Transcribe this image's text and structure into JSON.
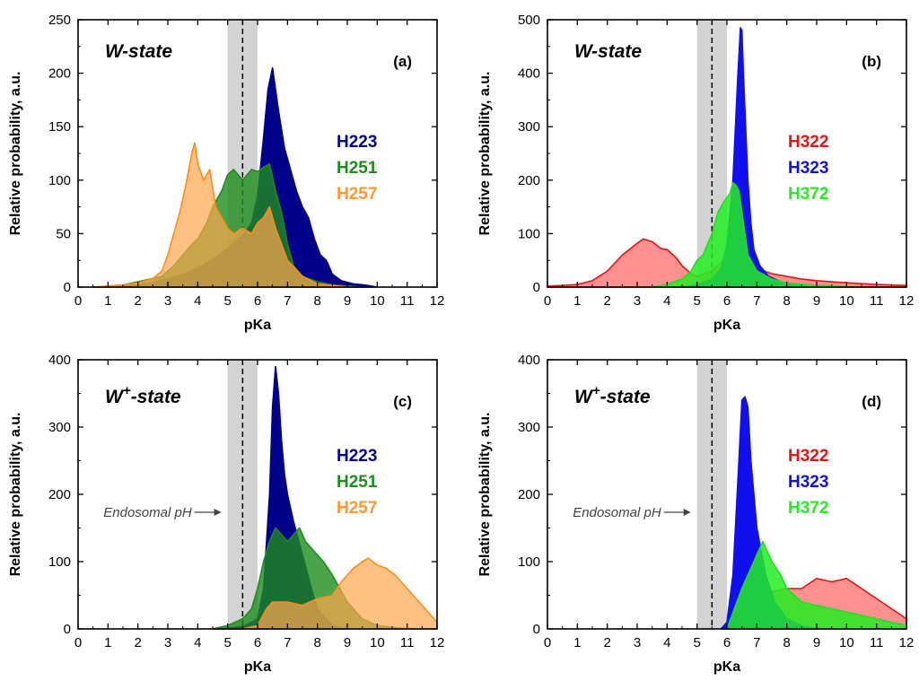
{
  "figure": {
    "shared": {
      "ph_band": [
        5,
        6
      ],
      "ph_line": 5.5,
      "annotation": "Endosomal pH",
      "colors": {
        "band": "#d3d3d3",
        "H223": "#00008b",
        "H251": "#1e8c1e",
        "H257": "#ff9933",
        "H322": "#ee1111",
        "H323": "#1010ee",
        "H372": "#22ee22"
      }
    }
  },
  "chart_data": [
    {
      "id": "a",
      "type": "area",
      "tag": "(a)",
      "state": {
        "base": "W",
        "sup": "",
        "suffix": "-state"
      },
      "xlabel": "pKa",
      "ylabel": "Relative probability, a.u.",
      "xlim": [
        0,
        12
      ],
      "ylim": [
        0,
        250
      ],
      "xticks": [
        0,
        1,
        2,
        3,
        4,
        5,
        6,
        7,
        8,
        9,
        10,
        11,
        12
      ],
      "yticks": [
        0,
        50,
        100,
        150,
        200,
        250
      ],
      "show_annotation": false,
      "legend": [
        "H223",
        "H251",
        "H257"
      ],
      "series": [
        {
          "name": "H223",
          "color": "#00008b",
          "opacity": 1,
          "stroke": "#00008b",
          "x": [
            0.5,
            1,
            1.5,
            2,
            2.5,
            3,
            3.5,
            4,
            4.5,
            5,
            5.5,
            5.8,
            6,
            6.2,
            6.35,
            6.5,
            6.7,
            6.9,
            7.1,
            7.3,
            7.5,
            7.7,
            7.9,
            8.1,
            8.3,
            8.5,
            8.8,
            9.2,
            9.6,
            10
          ],
          "y": [
            0,
            0,
            1,
            2,
            4,
            8,
            12,
            18,
            26,
            36,
            48,
            60,
            85,
            140,
            185,
            205,
            165,
            130,
            110,
            90,
            75,
            65,
            45,
            30,
            25,
            12,
            6,
            3,
            2,
            0
          ]
        },
        {
          "name": "H251",
          "color": "#1e8c1e",
          "opacity": 0.8,
          "stroke": "#1e8c1e",
          "x": [
            0.5,
            1,
            1.5,
            2,
            2.5,
            2.8,
            3,
            3.2,
            3.5,
            3.8,
            4,
            4.3,
            4.5,
            4.8,
            5,
            5.2,
            5.5,
            5.8,
            6,
            6.2,
            6.4,
            6.6,
            6.8,
            7,
            7.2,
            7.5,
            8,
            8.5,
            9,
            9.5
          ],
          "y": [
            0,
            1,
            2,
            5,
            8,
            10,
            15,
            20,
            30,
            40,
            45,
            60,
            75,
            90,
            105,
            110,
            100,
            110,
            108,
            112,
            115,
            90,
            70,
            40,
            20,
            10,
            5,
            2,
            1,
            0
          ]
        },
        {
          "name": "H257",
          "color": "#ffa64d",
          "opacity": 0.7,
          "stroke": "#ff8c1a",
          "x": [
            0.5,
            1,
            1.5,
            2,
            2.5,
            2.8,
            3,
            3.2,
            3.4,
            3.6,
            3.8,
            3.9,
            4,
            4.2,
            4.4,
            4.6,
            4.8,
            5,
            5.2,
            5.5,
            5.8,
            6,
            6.2,
            6.4,
            6.6,
            6.8,
            7,
            7.5,
            8,
            9
          ],
          "y": [
            0,
            1,
            2,
            4,
            8,
            15,
            30,
            50,
            70,
            95,
            125,
            135,
            115,
            100,
            110,
            75,
            65,
            55,
            50,
            55,
            50,
            60,
            65,
            75,
            55,
            40,
            25,
            10,
            3,
            0
          ]
        }
      ]
    },
    {
      "id": "b",
      "type": "area",
      "tag": "(b)",
      "state": {
        "base": "W",
        "sup": "",
        "suffix": "-state"
      },
      "xlabel": "pKa",
      "ylabel": "Relative probability, a.u.",
      "xlim": [
        0,
        12
      ],
      "ylim": [
        0,
        500
      ],
      "xticks": [
        0,
        1,
        2,
        3,
        4,
        5,
        6,
        7,
        8,
        9,
        10,
        11,
        12
      ],
      "yticks": [
        0,
        100,
        200,
        300,
        400,
        500
      ],
      "show_annotation": false,
      "legend": [
        "H322",
        "H323",
        "H372"
      ],
      "series": [
        {
          "name": "H322",
          "color": "#ff5555",
          "opacity": 0.65,
          "stroke": "#ee1111",
          "x": [
            0,
            0.5,
            1,
            1.5,
            2,
            2.5,
            3,
            3.2,
            3.5,
            3.8,
            4,
            4.3,
            4.5,
            4.8,
            5,
            5.5,
            6,
            6.3,
            6.6,
            7,
            7.5,
            8,
            8.5,
            9,
            9.5,
            10,
            11,
            12
          ],
          "y": [
            2,
            3,
            5,
            12,
            30,
            60,
            82,
            90,
            85,
            72,
            70,
            55,
            40,
            25,
            20,
            30,
            55,
            60,
            55,
            35,
            25,
            20,
            15,
            12,
            10,
            8,
            5,
            3
          ]
        },
        {
          "name": "H323",
          "color": "#1010ee",
          "opacity": 1,
          "stroke": "#1010ee",
          "x": [
            4.5,
            5,
            5.5,
            5.8,
            6,
            6.2,
            6.35,
            6.45,
            6.5,
            6.55,
            6.7,
            6.8,
            6.9,
            7.1,
            7.4,
            7.8,
            8.2,
            8.7
          ],
          "y": [
            0,
            5,
            15,
            35,
            80,
            200,
            380,
            485,
            480,
            400,
            200,
            120,
            70,
            40,
            20,
            10,
            5,
            0
          ]
        },
        {
          "name": "H372",
          "color": "#22ee22",
          "opacity": 0.85,
          "stroke": "#22dd22",
          "x": [
            3.5,
            4,
            4.5,
            4.8,
            5,
            5.2,
            5.5,
            5.7,
            5.9,
            6.1,
            6.2,
            6.3,
            6.4,
            6.5,
            6.7,
            7,
            7.5,
            8,
            9,
            10,
            11
          ],
          "y": [
            0,
            5,
            15,
            30,
            50,
            60,
            100,
            140,
            160,
            175,
            195,
            190,
            180,
            140,
            60,
            30,
            15,
            8,
            3,
            1,
            0
          ]
        }
      ]
    },
    {
      "id": "c",
      "type": "area",
      "tag": "(c)",
      "state": {
        "base": "W",
        "sup": "+",
        "suffix": "-state"
      },
      "xlabel": "pKa",
      "ylabel": "Relative probability, a.u.",
      "xlim": [
        0,
        12
      ],
      "ylim": [
        0,
        400
      ],
      "xticks": [
        0,
        1,
        2,
        3,
        4,
        5,
        6,
        7,
        8,
        9,
        10,
        11,
        12
      ],
      "yticks": [
        0,
        100,
        200,
        300,
        400
      ],
      "show_annotation": true,
      "legend": [
        "H223",
        "H251",
        "H257"
      ],
      "series": [
        {
          "name": "H223",
          "color": "#00008b",
          "opacity": 1,
          "stroke": "#00008b",
          "x": [
            4.8,
            5.2,
            5.6,
            6,
            6.2,
            6.4,
            6.5,
            6.6,
            6.7,
            6.8,
            6.9,
            7,
            7.2,
            7.5,
            7.8,
            8,
            8.5,
            9
          ],
          "y": [
            0,
            2,
            5,
            15,
            60,
            200,
            330,
            390,
            350,
            280,
            230,
            200,
            160,
            110,
            60,
            30,
            5,
            0
          ]
        },
        {
          "name": "H251",
          "color": "#1e8c1e",
          "opacity": 0.8,
          "stroke": "#1e8c1e",
          "x": [
            4.5,
            5,
            5.5,
            5.8,
            6,
            6.2,
            6.4,
            6.6,
            6.8,
            7,
            7.2,
            7.4,
            7.6,
            7.8,
            8,
            8.2,
            8.5,
            9,
            9.5,
            10,
            11
          ],
          "y": [
            0,
            5,
            15,
            30,
            60,
            100,
            130,
            150,
            140,
            130,
            140,
            150,
            130,
            120,
            110,
            100,
            80,
            40,
            15,
            5,
            0
          ]
        },
        {
          "name": "H257",
          "color": "#ffa64d",
          "opacity": 0.7,
          "stroke": "#ff8c1a",
          "x": [
            5.5,
            6,
            6.3,
            6.5,
            7,
            7.5,
            8,
            8.5,
            8.8,
            9,
            9.2,
            9.5,
            9.7,
            10,
            10.3,
            10.6,
            11,
            11.4,
            11.8,
            12
          ],
          "y": [
            0,
            5,
            30,
            40,
            40,
            35,
            45,
            50,
            70,
            80,
            90,
            100,
            105,
            95,
            90,
            80,
            60,
            40,
            20,
            10
          ]
        }
      ]
    },
    {
      "id": "d",
      "type": "area",
      "tag": "(d)",
      "state": {
        "base": "W",
        "sup": "+",
        "suffix": "-state"
      },
      "xlabel": "pKa",
      "ylabel": "Relative probability, a.u.",
      "xlim": [
        0,
        12
      ],
      "ylim": [
        0,
        400
      ],
      "xticks": [
        0,
        1,
        2,
        3,
        4,
        5,
        6,
        7,
        8,
        9,
        10,
        11,
        12
      ],
      "yticks": [
        0,
        100,
        200,
        300,
        400
      ],
      "show_annotation": true,
      "legend": [
        "H322",
        "H323",
        "H372"
      ],
      "series": [
        {
          "name": "H322",
          "color": "#ff5555",
          "opacity": 0.65,
          "stroke": "#ee1111",
          "x": [
            6,
            6.3,
            6.6,
            7,
            7.5,
            8,
            8.5,
            9,
            9.5,
            10,
            10.5,
            11,
            11.5,
            12
          ],
          "y": [
            0,
            30,
            60,
            65,
            55,
            60,
            60,
            75,
            70,
            75,
            60,
            45,
            30,
            15
          ]
        },
        {
          "name": "H323",
          "color": "#1010ee",
          "opacity": 1,
          "stroke": "#1010ee",
          "x": [
            5.8,
            6,
            6.2,
            6.4,
            6.5,
            6.6,
            6.7,
            6.8,
            7,
            7.3,
            7.6,
            8,
            8.5,
            9
          ],
          "y": [
            0,
            10,
            80,
            250,
            340,
            345,
            330,
            250,
            150,
            80,
            40,
            15,
            5,
            0
          ]
        },
        {
          "name": "H372",
          "color": "#22ee22",
          "opacity": 0.85,
          "stroke": "#22dd22",
          "x": [
            6,
            6.5,
            7,
            7.2,
            7.5,
            7.8,
            8,
            8.5,
            9,
            9.5,
            10,
            10.5,
            11,
            12
          ],
          "y": [
            0,
            60,
            110,
            130,
            100,
            80,
            60,
            40,
            35,
            30,
            25,
            20,
            15,
            5
          ]
        }
      ]
    }
  ]
}
